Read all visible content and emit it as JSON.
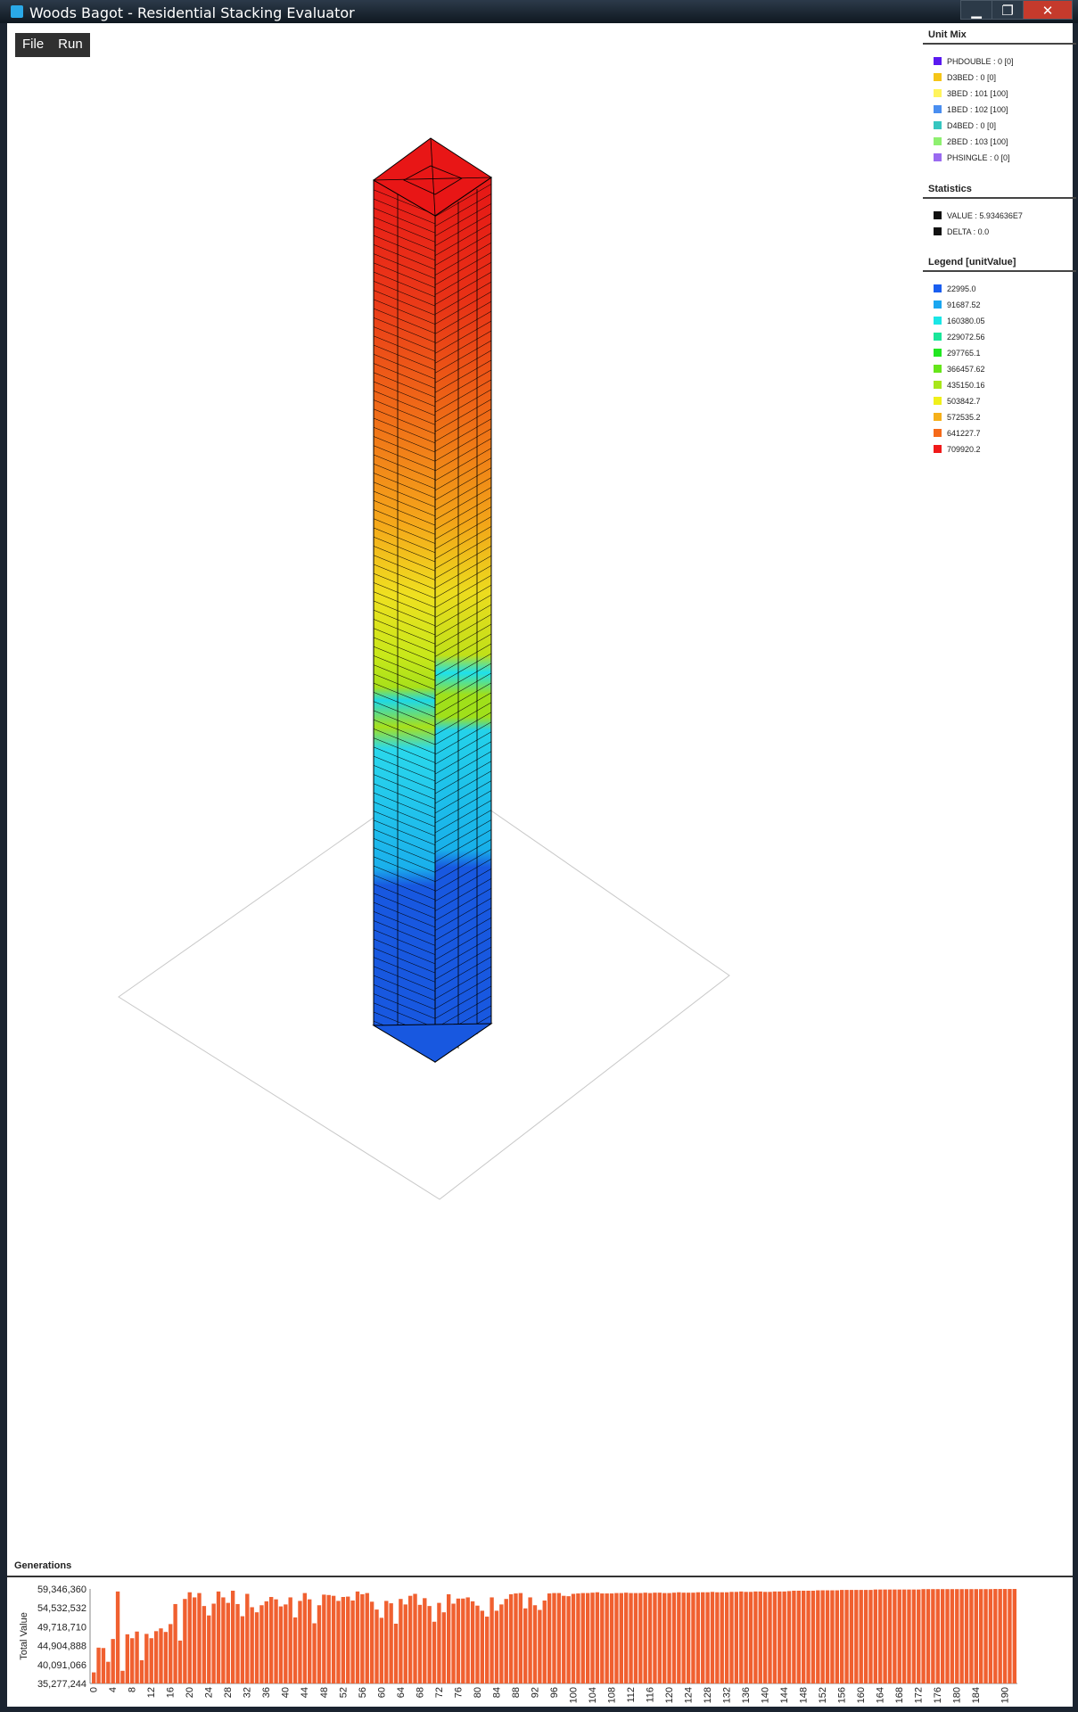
{
  "window": {
    "title": "Woods Bagot - Residential Stacking Evaluator",
    "minimize": "▁",
    "maximize": "❐",
    "close": "✕"
  },
  "menu": {
    "file": "File",
    "run": "Run"
  },
  "unit_mix": {
    "title": "Unit Mix",
    "items": [
      {
        "label": "PHDOUBLE : 0 [0]",
        "color": "#5a1af0"
      },
      {
        "label": "D3BED : 0 [0]",
        "color": "#f5c518"
      },
      {
        "label": "3BED : 101 [100]",
        "color": "#fff45c"
      },
      {
        "label": "1BED : 102 [100]",
        "color": "#4a8ef0"
      },
      {
        "label": "D4BED : 0 [0]",
        "color": "#36c6c0"
      },
      {
        "label": "2BED : 103 [100]",
        "color": "#8ef070"
      },
      {
        "label": "PHSINGLE : 0 [0]",
        "color": "#9a6af0"
      }
    ]
  },
  "statistics": {
    "title": "Statistics",
    "items": [
      {
        "label": "VALUE : 5.934636E7",
        "color": "#111111"
      },
      {
        "label": "DELTA : 0.0",
        "color": "#111111"
      }
    ]
  },
  "legend": {
    "title": "Legend [unitValue]",
    "items": [
      {
        "label": "22995.0",
        "color": "#1a5ef0"
      },
      {
        "label": "91687.52",
        "color": "#1aa6f0"
      },
      {
        "label": "160380.05",
        "color": "#1ae6e6"
      },
      {
        "label": "229072.56",
        "color": "#1ae69a"
      },
      {
        "label": "297765.1",
        "color": "#22e622"
      },
      {
        "label": "366457.62",
        "color": "#66e61a"
      },
      {
        "label": "435150.16",
        "color": "#a8e61a"
      },
      {
        "label": "503842.7",
        "color": "#f0f01a"
      },
      {
        "label": "572535.2",
        "color": "#f5b01a"
      },
      {
        "label": "641227.7",
        "color": "#f56a1a"
      },
      {
        "label": "709920.2",
        "color": "#f01a1a"
      }
    ]
  },
  "generations": {
    "title": "Generations",
    "ylabel": "Total Value",
    "yticks": [
      "35,277,244",
      "40,091,066",
      "44,904,888",
      "49,718,710",
      "54,532,532",
      "59,346,360"
    ]
  },
  "chart_data": {
    "type": "bar",
    "title": "Generations",
    "ylabel": "Total Value",
    "ylim": [
      35277244,
      59346360
    ],
    "x_tick_labels": [
      "0",
      "4",
      "8",
      "12",
      "16",
      "20",
      "24",
      "28",
      "32",
      "36",
      "40",
      "44",
      "48",
      "52",
      "56",
      "60",
      "64",
      "68",
      "72",
      "76",
      "80",
      "84",
      "88",
      "92",
      "96",
      "100",
      "104",
      "108",
      "112",
      "116",
      "120",
      "124",
      "128",
      "132",
      "136",
      "140",
      "144",
      "148",
      "152",
      "156",
      "160",
      "164",
      "168",
      "172",
      "176",
      "180",
      "184",
      "190"
    ],
    "color": "#f06030",
    "values": [
      38100000,
      44400000,
      44300000,
      40800000,
      46600000,
      58700000,
      38500000,
      47800000,
      46800000,
      48500000,
      41200000,
      47900000,
      46800000,
      48600000,
      49300000,
      48400000,
      50400000,
      55500000,
      46200000,
      56800000,
      58500000,
      57200000,
      58300000,
      55000000,
      52600000,
      55600000,
      58700000,
      57200000,
      55800000,
      58900000,
      55500000,
      52400000,
      58100000,
      54700000,
      53400000,
      55200000,
      56200000,
      57300000,
      56700000,
      54900000,
      55400000,
      57200000,
      52100000,
      56300000,
      58300000,
      56700000,
      50600000,
      55200000,
      57900000,
      57800000,
      57600000,
      56300000,
      57300000,
      57400000,
      56400000,
      58700000,
      58000000,
      58300000,
      56100000,
      54100000,
      52000000,
      56300000,
      55700000,
      50500000,
      56800000,
      55400000,
      57600000,
      58100000,
      55300000,
      57000000,
      55000000,
      51000000,
      55800000,
      53400000,
      58000000,
      55600000,
      56900000,
      56900000,
      57200000,
      56200000,
      55100000,
      53800000,
      52300000,
      57200000,
      53800000,
      55400000,
      56800000,
      58000000,
      58200000,
      58300000,
      54400000,
      57200000,
      55200000,
      54000000,
      56400000,
      58200000,
      58300000,
      58300000,
      57600000,
      57500000,
      58100000,
      58200000,
      58300000,
      58300000,
      58400000,
      58500000,
      58200000,
      58200000,
      58200000,
      58300000,
      58300000,
      58400000,
      58300000,
      58300000,
      58300000,
      58400000,
      58300000,
      58400000,
      58400000,
      58300000,
      58300000,
      58400000,
      58500000,
      58400000,
      58400000,
      58400000,
      58500000,
      58500000,
      58500000,
      58600000,
      58500000,
      58500000,
      58500000,
      58600000,
      58600000,
      58700000,
      58600000,
      58600000,
      58700000,
      58700000,
      58600000,
      58600000,
      58700000,
      58700000,
      58700000,
      58800000,
      58900000,
      58900000,
      58900000,
      58900000,
      58900000,
      59000000,
      59000000,
      59000000,
      59000000,
      59000000,
      59100000,
      59100000,
      59100000,
      59100000,
      59100000,
      59100000,
      59100000,
      59200000,
      59200000,
      59200000,
      59200000,
      59200000,
      59200000,
      59200000,
      59200000,
      59200000,
      59200000,
      59300000,
      59300000,
      59300000,
      59300000,
      59300000,
      59300000,
      59300000,
      59300000,
      59300000,
      59300000,
      59300000,
      59300000,
      59300000,
      59300000,
      59300000,
      59340000,
      59340000,
      59340000,
      59340000,
      59346360
    ]
  }
}
